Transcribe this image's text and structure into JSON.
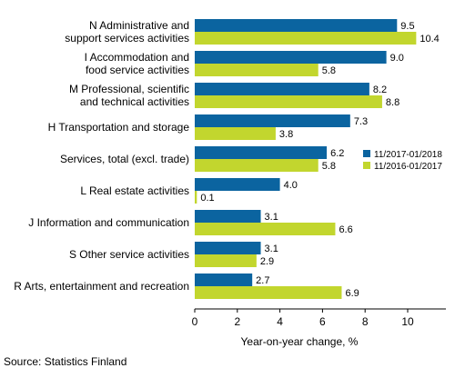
{
  "chart_data": {
    "type": "bar",
    "orientation": "horizontal",
    "categories": [
      [
        "N Administrative and",
        "support services activities"
      ],
      [
        "I Accommodation and",
        "food service activities"
      ],
      [
        "M Professional, scientific",
        "and technical activities"
      ],
      [
        "H Transportation and storage"
      ],
      [
        "Services, total (excl. trade)"
      ],
      [
        "L Real estate activities"
      ],
      [
        "J Information and communication"
      ],
      [
        "S Other service activities"
      ],
      [
        "R Arts, entertainment and recreation"
      ]
    ],
    "series": [
      {
        "name": "11/2017-01/2018",
        "color": "#0b64a0",
        "values": [
          9.5,
          9.0,
          8.2,
          7.3,
          6.2,
          4.0,
          3.1,
          3.1,
          2.7
        ]
      },
      {
        "name": "11/2016-01/2017",
        "color": "#c2d62e",
        "values": [
          10.4,
          5.8,
          8.8,
          3.8,
          5.8,
          0.1,
          6.6,
          2.9,
          6.9
        ]
      }
    ],
    "value_labels": [
      [
        "9.5",
        "9.0",
        "8.2",
        "7.3",
        "6.2",
        "4.0",
        "3.1",
        "3.1",
        "2.7"
      ],
      [
        "10.4",
        "5.8",
        "8.8",
        "3.8",
        "5.8",
        "0.1",
        "6.6",
        "2.9",
        "6.9"
      ]
    ],
    "xlim": [
      0,
      12
    ],
    "xticks": [
      0,
      2,
      4,
      6,
      8,
      10
    ],
    "xlabel": "Year-on-year change, %",
    "legend_position": "right"
  },
  "source": "Source: Statistics Finland"
}
